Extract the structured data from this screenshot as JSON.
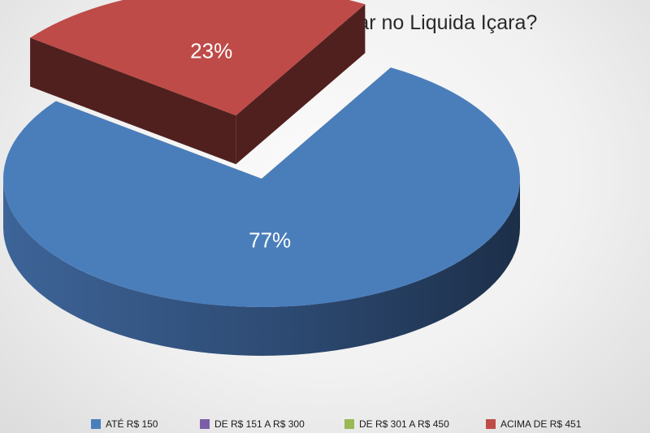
{
  "chart_data": {
    "type": "pie",
    "style": "3d-exploded",
    "title": "Quanto você pretende gastar no Liquida Içara?",
    "slices": [
      {
        "name": "ATÉ R$ 150",
        "value": 77,
        "label": "77%",
        "color": "#4a7ebb"
      },
      {
        "name": "DE R$ 151 A R$ 300",
        "value": 0,
        "label": "",
        "color": "#7b5ea7"
      },
      {
        "name": "DE R$ 301 A R$ 450",
        "value": 0,
        "label": "",
        "color": "#98b954"
      },
      {
        "name": "ACIMA DE R$ 451",
        "value": 23,
        "label": "23%",
        "color": "#be4b48"
      }
    ],
    "legend_position": "bottom"
  }
}
